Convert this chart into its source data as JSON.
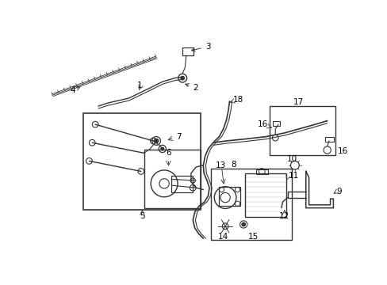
{
  "bg_color": "#ffffff",
  "line_color": "#333333",
  "text_color": "#000000",
  "fig_width": 4.89,
  "fig_height": 3.6,
  "dpi": 100
}
